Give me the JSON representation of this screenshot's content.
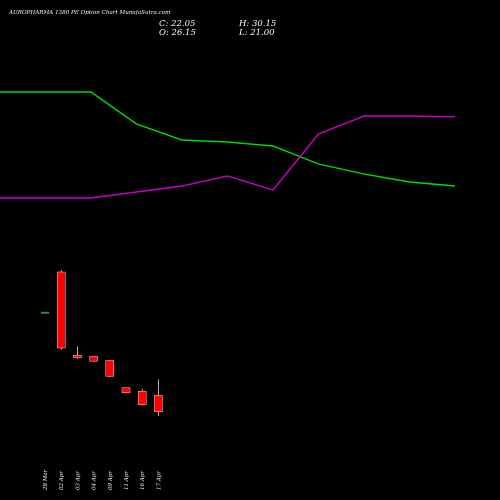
{
  "header": {
    "title": "AUROPHARMA 1380  PE Option  Chart MunafaSutra.com",
    "close": "C: 22.05",
    "open": "O: 26.15",
    "high": "H: 30.15",
    "low": "L: 21.00"
  },
  "chart_data": {
    "type": "candlestick",
    "title": "AUROPHARMA 1380  PE Option  Chart MunafaSutra.com",
    "x_labels": [
      "28 Mar",
      "02 Apr",
      "03 Apr",
      "04 Apr",
      "09 Apr",
      "11 Apr",
      "16 Apr",
      "17 Apr"
    ],
    "candles": [
      {
        "date": "28 Mar",
        "open": 47.0,
        "high": 47.0,
        "low": 47.0,
        "close": 47.0,
        "color": "#2e8b57"
      },
      {
        "date": "02 Apr",
        "open": 38.0,
        "high": 57.5,
        "low": 37.6,
        "close": 57.0,
        "color": "#ff0000"
      },
      {
        "date": "03 Apr",
        "open": 36.2,
        "high": 38.3,
        "low": 35.3,
        "close": 35.6,
        "color": "#ff0000"
      },
      {
        "date": "04 Apr",
        "open": 35.9,
        "high": 35.9,
        "low": 34.6,
        "close": 34.7,
        "color": "#ff0000"
      },
      {
        "date": "09 Apr",
        "open": 34.9,
        "high": 34.9,
        "low": 30.8,
        "close": 30.9,
        "color": "#ff0000"
      },
      {
        "date": "11 Apr",
        "open": 28.1,
        "high": 28.1,
        "low": 26.7,
        "close": 26.8,
        "color": "#ff0000"
      },
      {
        "date": "16 Apr",
        "open": 27.2,
        "high": 27.8,
        "low": 23.6,
        "close": 23.8,
        "color": "#ff0000"
      },
      {
        "date": "17 Apr",
        "open": 26.15,
        "high": 30.15,
        "low": 21.0,
        "close": 22.05,
        "color": "#ff0000"
      }
    ],
    "lines": [
      {
        "color": "#00dd00",
        "values": [
          102,
          102,
          102,
          94,
          90,
          89.5,
          88.5,
          84,
          81.5,
          79.5,
          78.5
        ]
      },
      {
        "color": "#cc00cc",
        "values": [
          75.5,
          75.5,
          75.5,
          77,
          78.5,
          81,
          77.5,
          91.5,
          96,
          96,
          95.8
        ]
      }
    ],
    "ylim": [
      0,
      125
    ],
    "grid": false
  }
}
